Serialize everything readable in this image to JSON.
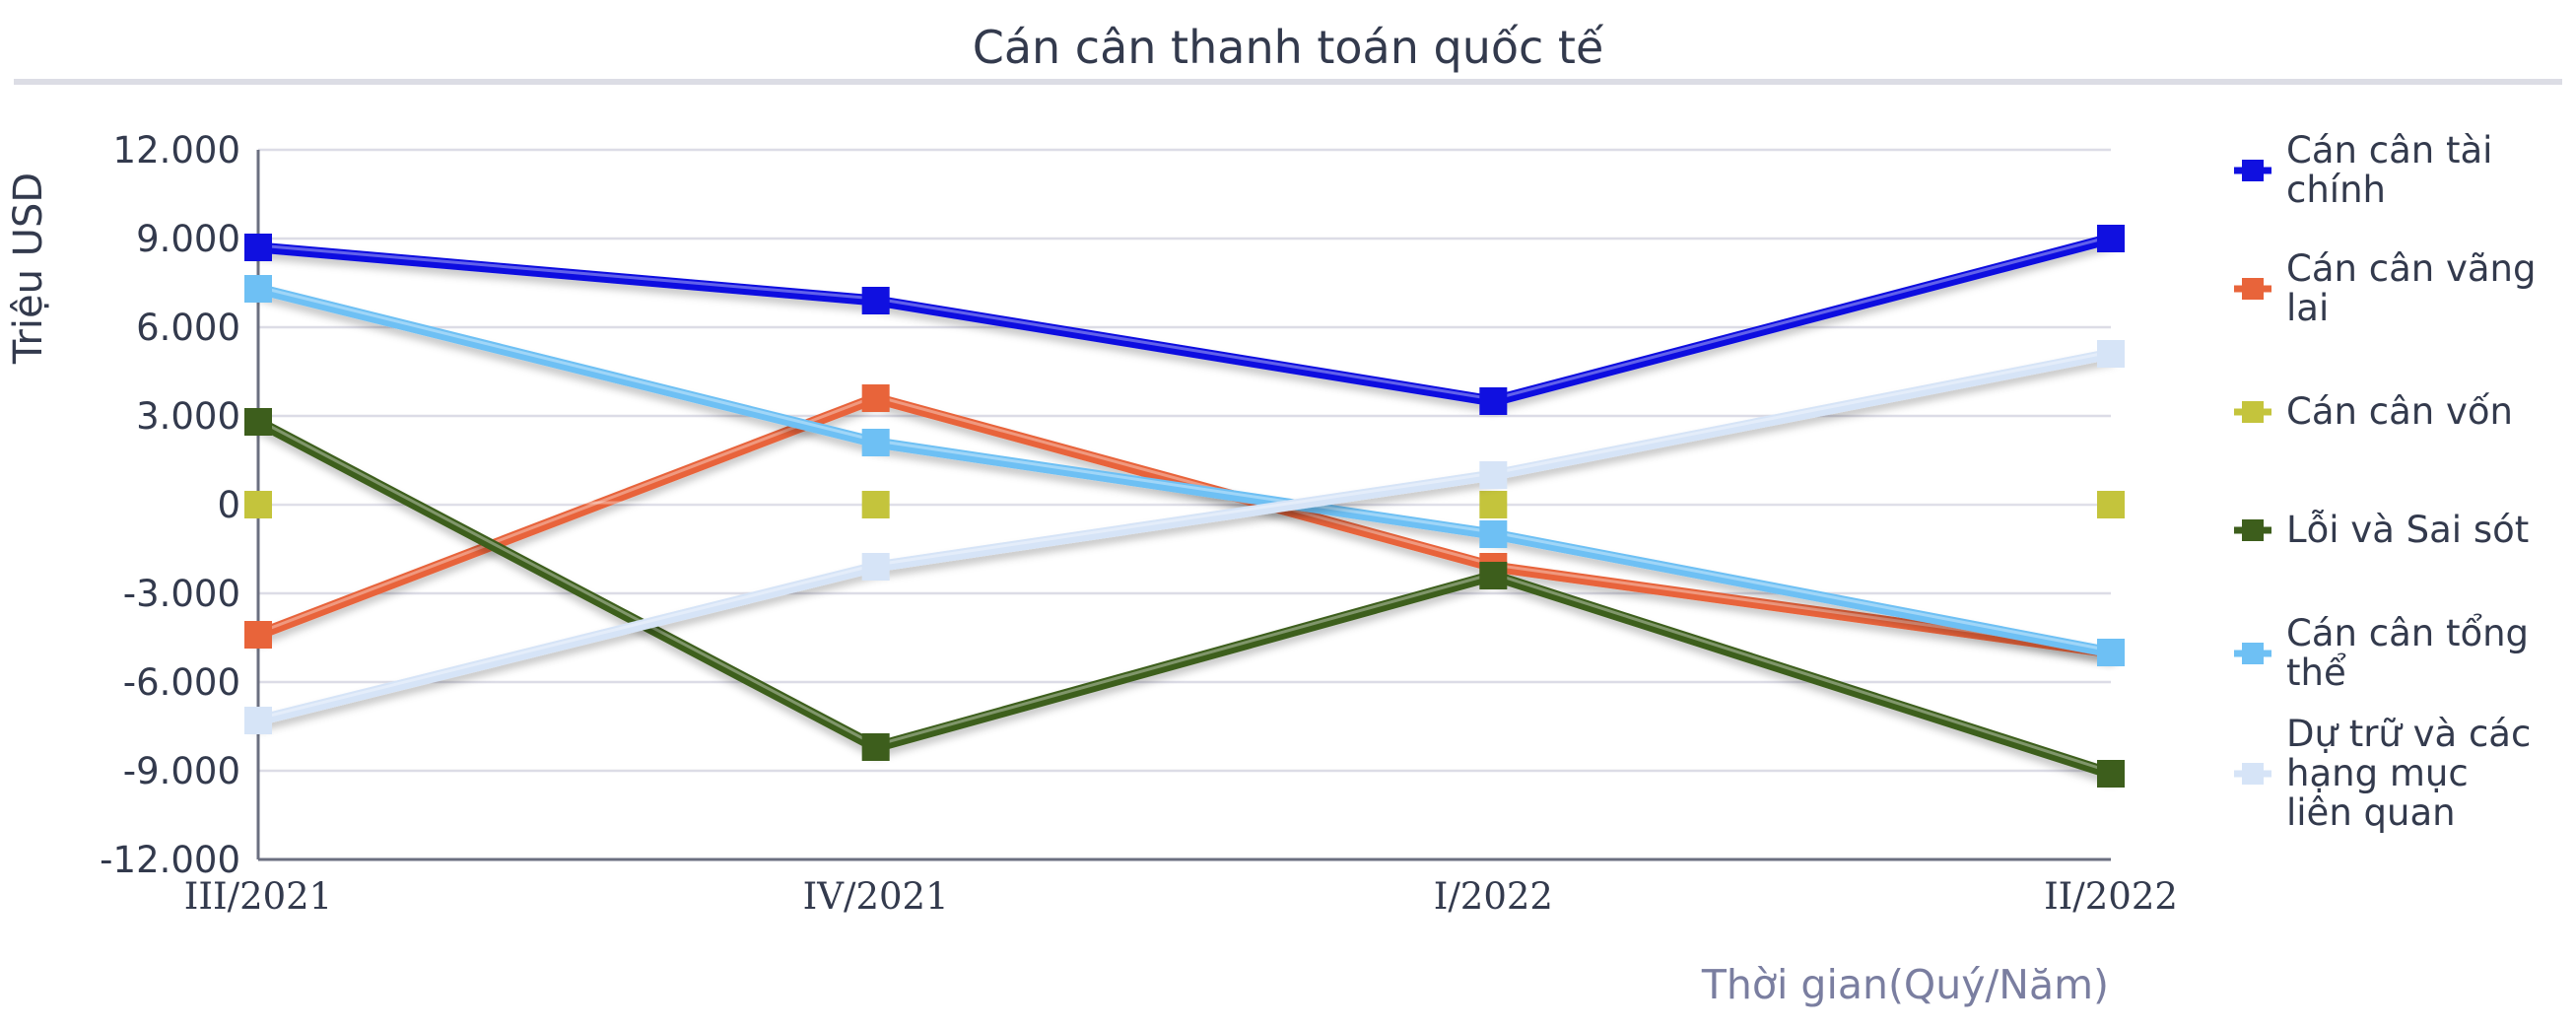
{
  "chart_data": {
    "type": "line",
    "title": "Cán cân thanh toán quốc tế",
    "xlabel": "Thời gian(Quý/Năm)",
    "ylabel": "Triệu USD",
    "categories": [
      "III/2021",
      "IV/2021",
      "I/2022",
      "II/2022"
    ],
    "ylim": [
      -12000,
      12000
    ],
    "yticks": [
      {
        "value": 12000,
        "label": "12.000"
      },
      {
        "value": 9000,
        "label": "9.000"
      },
      {
        "value": 6000,
        "label": "6.000"
      },
      {
        "value": 3000,
        "label": "3.000"
      },
      {
        "value": 0,
        "label": "0"
      },
      {
        "value": -3000,
        "label": "-3.000"
      },
      {
        "value": -6000,
        "label": "-6.000"
      },
      {
        "value": -9000,
        "label": "-9.000"
      },
      {
        "value": -12000,
        "label": "-12.000"
      }
    ],
    "grid": true,
    "legend_position": "right",
    "series": [
      {
        "name": "Cán cân tài chính",
        "color": "#1010e0",
        "values": [
          8700,
          6900,
          3500,
          9000
        ]
      },
      {
        "name": "Cán cân vãng lai",
        "color": "#e8643a",
        "values": [
          -4400,
          3600,
          -2100,
          -5000
        ]
      },
      {
        "name": "Cán cân vốn",
        "color": "#c4c43c",
        "values": [
          0,
          0,
          0,
          0
        ]
      },
      {
        "name": "Lỗi và Sai sót",
        "color": "#3d5e1c",
        "values": [
          2800,
          -8200,
          -2400,
          -9100
        ]
      },
      {
        "name": "Cán cân tổng thể",
        "color": "#6ec0f4",
        "values": [
          7300,
          2100,
          -1000,
          -5000
        ]
      },
      {
        "name": "Dự trữ và các hạng mục liên quan",
        "color": "#d6e4f7",
        "values": [
          -7300,
          -2100,
          1000,
          5100
        ]
      }
    ]
  }
}
